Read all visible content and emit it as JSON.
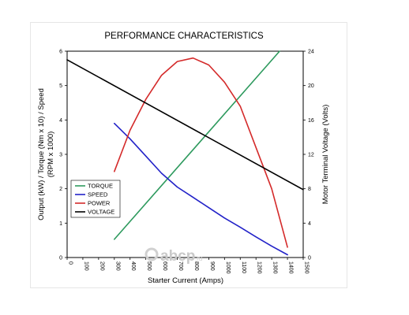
{
  "chart_data": {
    "type": "line",
    "title": "PERFORMANCE CHARACTERISTICS",
    "xlabel": "Starter Current (Amps)",
    "ylabel_left_line1": "Output (kW) / Torque (Nm x 10) / Speed",
    "ylabel_left_line2": "(RPM x 1000)",
    "ylabel_right": "Motor Terminal Voltage (Volts)",
    "xlim": [
      0,
      1500
    ],
    "ylim_left": [
      0,
      6
    ],
    "ylim_right": [
      0,
      24
    ],
    "x_ticks": [
      "0",
      "100",
      "200",
      "300",
      "400",
      "500",
      "600",
      "700",
      "800",
      "900",
      "1000",
      "1100",
      "1200",
      "1300",
      "1400",
      "1500"
    ],
    "y_left_ticks": [
      "0",
      "1",
      "2",
      "3",
      "4",
      "5",
      "6"
    ],
    "y_right_ticks": [
      "0",
      "4",
      "8",
      "12",
      "16",
      "20",
      "24"
    ],
    "legend_position": "left",
    "grid": false,
    "series": [
      {
        "name": "TORQUE",
        "color": "#2e9a5e",
        "axis": "left",
        "x": [
          300,
          1350
        ],
        "y": [
          0.53,
          6.0
        ]
      },
      {
        "name": "SPEED",
        "color": "#2222c8",
        "axis": "left",
        "x": [
          300,
          400,
          500,
          600,
          700,
          800,
          900,
          1000,
          1100,
          1200,
          1300,
          1400
        ],
        "y": [
          3.9,
          3.45,
          2.95,
          2.45,
          2.05,
          1.75,
          1.45,
          1.15,
          0.88,
          0.6,
          0.33,
          0.08
        ]
      },
      {
        "name": "POWER",
        "color": "#d42a2a",
        "axis": "left",
        "x": [
          300,
          400,
          500,
          600,
          700,
          800,
          900,
          1000,
          1100,
          1200,
          1300,
          1400
        ],
        "y": [
          2.5,
          3.7,
          4.6,
          5.3,
          5.7,
          5.8,
          5.6,
          5.1,
          4.4,
          3.2,
          2.0,
          0.3
        ]
      },
      {
        "name": "VOLTAGE",
        "color": "#000000",
        "axis": "right",
        "x": [
          0,
          1500
        ],
        "y": [
          23.0,
          7.9
        ]
      }
    ]
  },
  "watermark": {
    "text": "abcp",
    "suffix": ".ru"
  }
}
